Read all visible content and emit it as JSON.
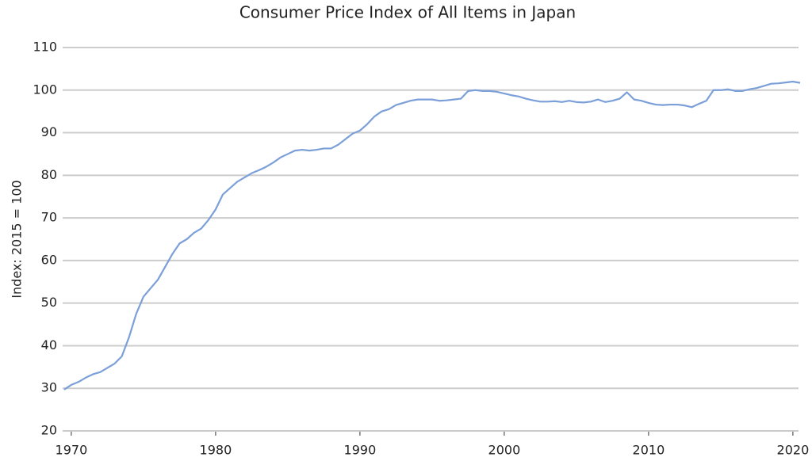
{
  "chart_data": {
    "type": "line",
    "title": "Consumer Price Index of All Items in Japan",
    "y_label": "Index: 2015 = 100",
    "x": [
      1969.5,
      1970,
      1970.5,
      1971,
      1971.5,
      1972,
      1972.5,
      1973,
      1973.5,
      1974,
      1974.5,
      1975,
      1975.5,
      1976,
      1976.5,
      1977,
      1977.5,
      1978,
      1978.5,
      1979,
      1979.5,
      1980,
      1980.5,
      1981,
      1981.5,
      1982,
      1982.5,
      1983,
      1983.5,
      1984,
      1984.5,
      1985,
      1985.5,
      1986,
      1986.5,
      1987,
      1987.5,
      1988,
      1988.5,
      1989,
      1989.5,
      1990,
      1990.5,
      1991,
      1991.5,
      1992,
      1992.5,
      1993,
      1993.5,
      1994,
      1994.5,
      1995,
      1995.5,
      1996,
      1996.5,
      1997,
      1997.5,
      1998,
      1998.5,
      1999,
      1999.5,
      2000,
      2000.5,
      2001,
      2001.5,
      2002,
      2002.5,
      2003,
      2003.5,
      2004,
      2004.5,
      2005,
      2005.5,
      2006,
      2006.5,
      2007,
      2007.5,
      2008,
      2008.5,
      2009,
      2009.5,
      2010,
      2010.5,
      2011,
      2011.5,
      2012,
      2012.5,
      2013,
      2013.5,
      2014,
      2014.5,
      2015,
      2015.5,
      2016,
      2016.5,
      2017,
      2017.5,
      2018,
      2018.5,
      2019,
      2019.5,
      2020,
      2020.5
    ],
    "series": [
      {
        "name": "CPI",
        "color": "#7b9fd8",
        "values": [
          29.7,
          30.8,
          31.5,
          32.5,
          33.3,
          33.8,
          34.8,
          35.8,
          37.5,
          42,
          47.5,
          51.5,
          53.5,
          55.5,
          58.5,
          61.5,
          64,
          65,
          66.5,
          67.5,
          69.5,
          72,
          75.5,
          77,
          78.5,
          79.5,
          80.5,
          81.2,
          82,
          83,
          84.2,
          85,
          85.8,
          86,
          85.8,
          86,
          86.3,
          86.3,
          87.2,
          88.5,
          89.8,
          90.5,
          92,
          93.8,
          95,
          95.5,
          96.5,
          97,
          97.5,
          97.8,
          97.8,
          97.8,
          97.5,
          97.6,
          97.8,
          98,
          99.8,
          100,
          99.8,
          99.8,
          99.6,
          99.2,
          98.8,
          98.5,
          98,
          97.6,
          97.3,
          97.3,
          97.4,
          97.2,
          97.5,
          97.2,
          97.1,
          97.3,
          97.8,
          97.2,
          97.5,
          98,
          99.5,
          97.8,
          97.5,
          97,
          96.6,
          96.5,
          96.6,
          96.6,
          96.4,
          96,
          96.8,
          97.5,
          100,
          100,
          100.2,
          99.8,
          99.8,
          100.2,
          100.5,
          101,
          101.5,
          101.6,
          101.8,
          102,
          101.7
        ]
      }
    ],
    "xlim": [
      1969.4,
      2020.5
    ],
    "xticks": [
      1970,
      1980,
      1990,
      2000,
      2010,
      2020
    ],
    "ylim": [
      20,
      110
    ],
    "yticks": [
      20,
      30,
      40,
      50,
      60,
      70,
      80,
      90,
      100,
      110
    ],
    "grid": true
  }
}
